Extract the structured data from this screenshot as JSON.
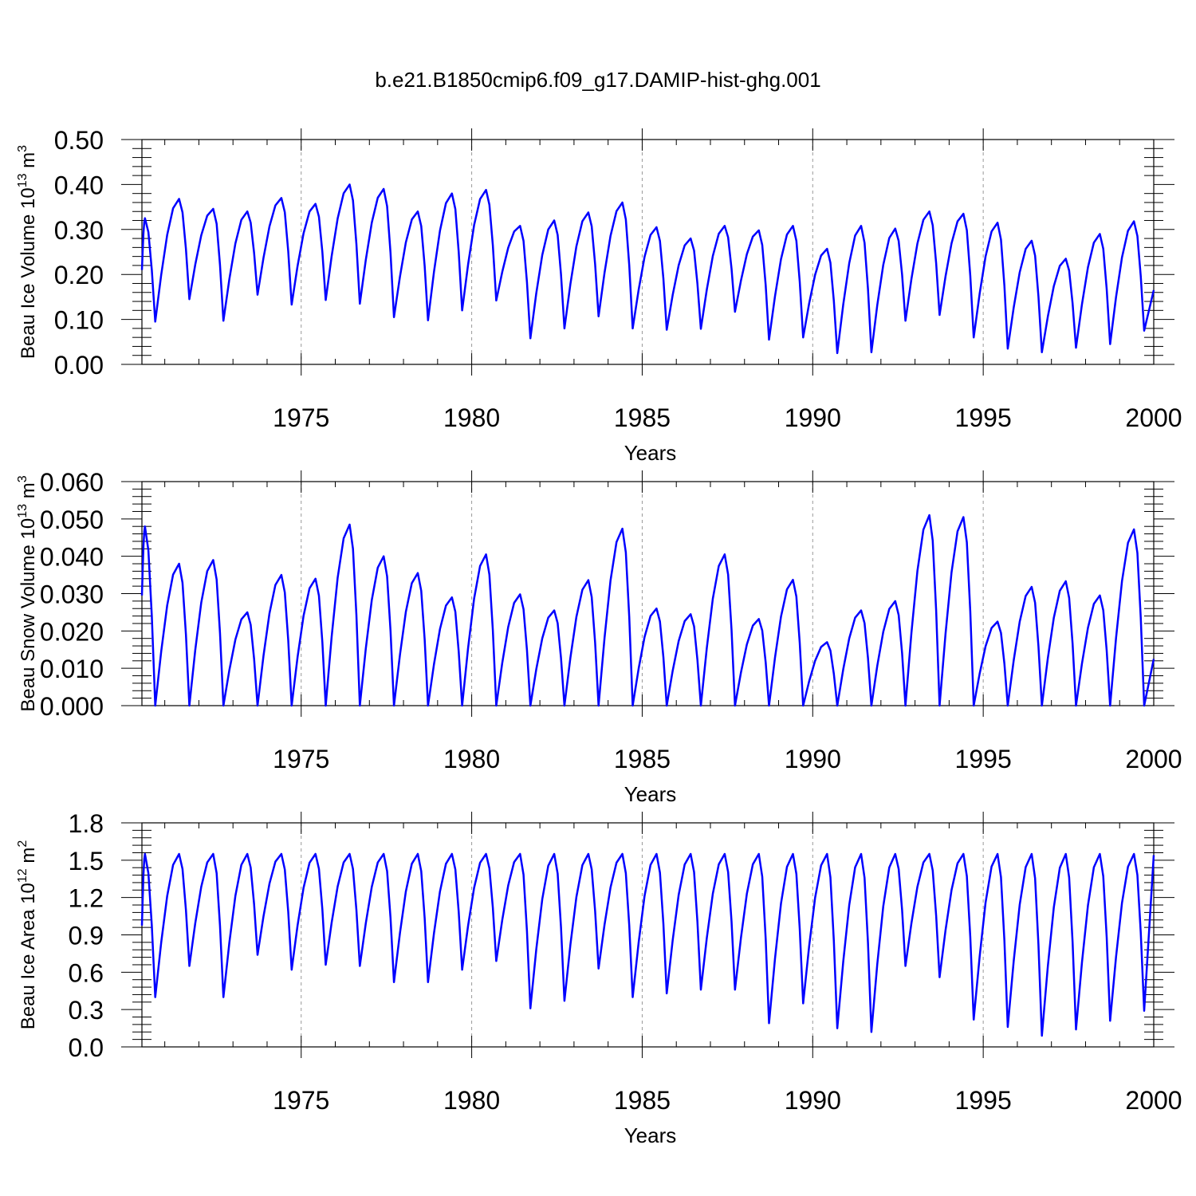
{
  "title": "b.e21.B1850cmip6.f09_g17.DAMIP-hist-ghg.001",
  "colors": {
    "line": "#0000ff",
    "axis": "#000000",
    "gridline": "#999999"
  },
  "chart_data": [
    {
      "id": "ice-volume",
      "type": "line",
      "xlabel": "Years",
      "ylabel_text": "Beau Ice Volume 10",
      "ylabel_exp": "13",
      "ylabel_unit": " m",
      "ylabel_unit_exp": "3",
      "xlim": [
        1970.33,
        2000
      ],
      "ylim": [
        0,
        0.5
      ],
      "yticks": [
        "0.00",
        "0.10",
        "0.20",
        "0.30",
        "0.40",
        "0.50"
      ],
      "yticks_values": [
        0,
        0.1,
        0.2,
        0.3,
        0.4,
        0.5
      ],
      "xticks": [
        "1975",
        "1980",
        "1985",
        "1990",
        "1995",
        "2000"
      ],
      "xticks_values": [
        1975,
        1980,
        1985,
        1990,
        1995,
        2000
      ],
      "year_start": 1970.33,
      "series": [
        {
          "name": "Beau Ice Volume",
          "maxima": [
            0.325,
            0.368,
            0.346,
            0.34,
            0.37,
            0.357,
            0.4,
            0.39,
            0.34,
            0.38,
            0.388,
            0.308,
            0.32,
            0.338,
            0.36,
            0.305,
            0.28,
            0.308,
            0.298,
            0.308,
            0.257,
            0.308,
            0.302,
            0.34,
            0.335,
            0.315,
            0.275,
            0.235,
            0.29,
            0.318
          ],
          "minima": [
            0.095,
            0.145,
            0.097,
            0.155,
            0.133,
            0.143,
            0.135,
            0.105,
            0.098,
            0.12,
            0.142,
            0.058,
            0.08,
            0.107,
            0.08,
            0.077,
            0.079,
            0.117,
            0.055,
            0.06,
            0.025,
            0.027,
            0.097,
            0.11,
            0.06,
            0.035,
            0.027,
            0.037,
            0.045,
            0.075
          ],
          "final": 0.165
        }
      ]
    },
    {
      "id": "snow-volume",
      "type": "line",
      "xlabel": "Years",
      "ylabel_text": "Beau Snow Volume 10",
      "ylabel_exp": "13",
      "ylabel_unit": " m",
      "ylabel_unit_exp": "3",
      "xlim": [
        1970.33,
        2000
      ],
      "ylim": [
        0,
        0.06
      ],
      "yticks": [
        "0.000",
        "0.010",
        "0.020",
        "0.030",
        "0.040",
        "0.050",
        "0.060"
      ],
      "yticks_values": [
        0,
        0.01,
        0.02,
        0.03,
        0.04,
        0.05,
        0.06
      ],
      "xticks": [
        "1975",
        "1980",
        "1985",
        "1990",
        "1995",
        "2000"
      ],
      "xticks_values": [
        1975,
        1980,
        1985,
        1990,
        1995,
        2000
      ],
      "year_start": 1970.33,
      "series": [
        {
          "name": "Beau Snow Volume",
          "maxima": [
            0.048,
            0.038,
            0.039,
            0.025,
            0.035,
            0.034,
            0.0485,
            0.04,
            0.0355,
            0.029,
            0.0405,
            0.0298,
            0.0255,
            0.0336,
            0.0474,
            0.026,
            0.0245,
            0.0405,
            0.0232,
            0.0337,
            0.017,
            0.0255,
            0.028,
            0.051,
            0.0505,
            0.0225,
            0.0318,
            0.0333,
            0.0295,
            0.0472
          ],
          "minima": [
            0.0,
            0.0,
            0.0,
            0.0,
            0.0,
            0.0,
            0.0,
            0.0,
            0.0,
            0.0,
            0.0,
            0.0,
            0.0,
            0.0,
            0.0,
            0.0,
            0.0,
            0.0,
            0.0,
            0.0,
            0.0,
            0.0,
            0.0,
            0.0,
            0.0,
            0.0,
            0.0,
            0.0,
            0.0,
            0.0
          ],
          "first": 0.0295,
          "final": 0.0125
        }
      ]
    },
    {
      "id": "ice-area",
      "type": "line",
      "xlabel": "Years",
      "ylabel_text": "Beau Ice Area 10",
      "ylabel_exp": "12",
      "ylabel_unit": " m",
      "ylabel_unit_exp": "2",
      "xlim": [
        1970.33,
        2000
      ],
      "ylim": [
        0,
        1.8
      ],
      "yticks": [
        "0.0",
        "0.3",
        "0.6",
        "0.9",
        "1.2",
        "1.5",
        "1.8"
      ],
      "yticks_values": [
        0,
        0.3,
        0.6,
        0.9,
        1.2,
        1.5,
        1.8
      ],
      "xticks": [
        "1975",
        "1980",
        "1985",
        "1990",
        "1995",
        "2000"
      ],
      "xticks_values": [
        1975,
        1980,
        1985,
        1990,
        1995,
        2000
      ],
      "year_start": 1970.33,
      "series": [
        {
          "name": "Beau Ice Area",
          "maxima": [
            1.55,
            1.55,
            1.55,
            1.55,
            1.55,
            1.55,
            1.55,
            1.55,
            1.55,
            1.55,
            1.55,
            1.55,
            1.55,
            1.55,
            1.55,
            1.55,
            1.55,
            1.55,
            1.55,
            1.55,
            1.55,
            1.55,
            1.55,
            1.55,
            1.55,
            1.55,
            1.55,
            1.55,
            1.55,
            1.55
          ],
          "minima": [
            0.4,
            0.65,
            0.4,
            0.74,
            0.62,
            0.66,
            0.65,
            0.52,
            0.52,
            0.62,
            0.69,
            0.31,
            0.37,
            0.63,
            0.4,
            0.43,
            0.46,
            0.46,
            0.19,
            0.35,
            0.15,
            0.12,
            0.65,
            0.56,
            0.22,
            0.16,
            0.09,
            0.14,
            0.21,
            0.29
          ],
          "final": 1.54
        }
      ]
    }
  ]
}
